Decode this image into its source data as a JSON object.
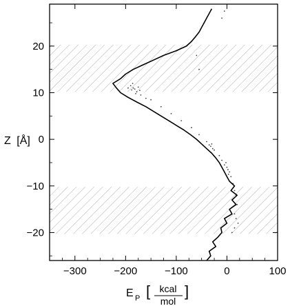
{
  "chart_data": {
    "type": "scatter",
    "title": "",
    "xlabel": {
      "main": "E",
      "subscript": "P",
      "unit_numerator": "kcal",
      "unit_denominator": "mol"
    },
    "ylabel": {
      "main": "Z",
      "unit": "Å"
    },
    "xlim": [
      -350,
      100
    ],
    "ylim": [
      -26,
      29
    ],
    "xticks": [
      -300,
      -200,
      -100,
      0,
      100
    ],
    "xtick_labels": [
      "−300",
      "−200",
      "−100",
      "0",
      "100"
    ],
    "yticks": [
      -20,
      -10,
      0,
      10,
      20
    ],
    "ytick_labels": [
      "−20",
      "−10",
      "0",
      "10",
      "20"
    ],
    "grid": false,
    "hatched_bands": [
      {
        "z_from": 10.2,
        "z_to": 20.3
      },
      {
        "z_from": -20.3,
        "z_to": -10.2
      }
    ],
    "series": [
      {
        "kind": "line",
        "color": "#000000",
        "points": [
          [
            -40,
            -26
          ],
          [
            -32,
            -25
          ],
          [
            -35,
            -24
          ],
          [
            -22,
            -23
          ],
          [
            -28,
            -22
          ],
          [
            -18,
            -21
          ],
          [
            -10,
            -20
          ],
          [
            -12,
            -19
          ],
          [
            0,
            -18
          ],
          [
            -5,
            -17
          ],
          [
            10,
            -16
          ],
          [
            5,
            -15
          ],
          [
            18,
            -14
          ],
          [
            10,
            -13
          ],
          [
            20,
            -12
          ],
          [
            8,
            -11
          ],
          [
            15,
            -10
          ],
          [
            5,
            -9
          ],
          [
            0,
            -8
          ],
          [
            -5,
            -7
          ],
          [
            -10,
            -6
          ],
          [
            -15,
            -5
          ],
          [
            -22,
            -4
          ],
          [
            -30,
            -3
          ],
          [
            -40,
            -2
          ],
          [
            -50,
            -1
          ],
          [
            -60,
            0
          ],
          [
            -72,
            1
          ],
          [
            -85,
            2
          ],
          [
            -100,
            3
          ],
          [
            -115,
            4
          ],
          [
            -130,
            5
          ],
          [
            -145,
            6
          ],
          [
            -160,
            7
          ],
          [
            -178,
            8
          ],
          [
            -195,
            9
          ],
          [
            -210,
            10
          ],
          [
            -218,
            11
          ],
          [
            -225,
            12
          ],
          [
            -210,
            13
          ],
          [
            -200,
            14
          ],
          [
            -185,
            15
          ],
          [
            -165,
            16
          ],
          [
            -145,
            17
          ],
          [
            -125,
            18
          ],
          [
            -100,
            19
          ],
          [
            -80,
            20
          ],
          [
            -70,
            21
          ],
          [
            -62,
            22
          ],
          [
            -55,
            23
          ],
          [
            -50,
            24
          ],
          [
            -45,
            25
          ],
          [
            -40,
            26
          ],
          [
            -35,
            27
          ],
          [
            -30,
            28
          ]
        ]
      },
      {
        "kind": "scatter",
        "color": "#000000",
        "points": [
          [
            -190,
            11.5
          ],
          [
            -185,
            11
          ],
          [
            -182,
            10.8
          ],
          [
            -178,
            10.2
          ],
          [
            -188,
            10.6
          ],
          [
            -175,
            11.2
          ],
          [
            -195,
            11
          ],
          [
            -180,
            9.8
          ],
          [
            -172,
            10.5
          ],
          [
            -186,
            12
          ],
          [
            -170,
            9.5
          ],
          [
            -160,
            8.8
          ],
          [
            -150,
            8.5
          ],
          [
            -130,
            7
          ],
          [
            -110,
            5.5
          ],
          [
            -90,
            4
          ],
          [
            -70,
            2.5
          ],
          [
            -55,
            1
          ],
          [
            -40,
            -0.5
          ],
          [
            -35,
            -1.2
          ],
          [
            -32,
            -1.5
          ],
          [
            -28,
            -2
          ],
          [
            -25,
            -2.3
          ],
          [
            -30,
            -1
          ],
          [
            -15,
            -3.5
          ],
          [
            -10,
            -4.5
          ],
          [
            -5,
            -5.5
          ],
          [
            0,
            -6
          ],
          [
            2,
            -6.5
          ],
          [
            5,
            -7
          ],
          [
            -2,
            -5
          ],
          [
            3,
            -7.5
          ],
          [
            8,
            -8
          ],
          [
            12,
            -9.5
          ],
          [
            15,
            -11
          ],
          [
            18,
            -12
          ],
          [
            20,
            -14
          ],
          [
            15,
            -16
          ],
          [
            18,
            -17
          ],
          [
            22,
            -18
          ],
          [
            10,
            -20
          ],
          [
            15,
            -19
          ],
          [
            -5,
            27.5
          ],
          [
            -10,
            26
          ],
          [
            -55,
            15
          ],
          [
            -60,
            18
          ]
        ]
      }
    ]
  }
}
